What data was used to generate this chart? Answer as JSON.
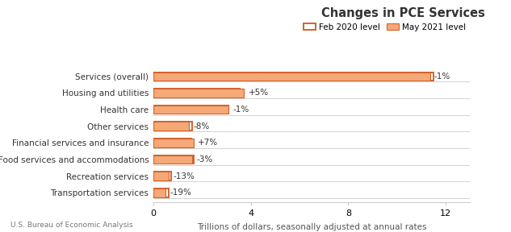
{
  "title": "Changes in PCE Services",
  "legend_labels": [
    "Feb 2020 level",
    "May 2021 level"
  ],
  "xlabel": "Trillions of dollars, seasonally adjusted at annual rates",
  "footnote": "U.S. Bureau of Economic Analysis",
  "categories": [
    "Services (overall)",
    "Housing and utilities",
    "Health care",
    "Other services",
    "Financial services and insurance",
    "Food services and accommodations",
    "Recreation services",
    "Transportation services"
  ],
  "feb2020_values": [
    11.5,
    3.55,
    3.1,
    1.6,
    1.55,
    1.65,
    0.72,
    0.62
  ],
  "may2021_values": [
    11.35,
    3.72,
    3.07,
    1.47,
    1.66,
    1.6,
    0.63,
    0.5
  ],
  "pct_labels": [
    "-1%",
    "+5%",
    "-1%",
    "-8%",
    "+7%",
    "-3%",
    "-13%",
    "-19%"
  ],
  "bar_color_filled": "#F5A878",
  "bar_color_outline": "#D4622A",
  "xlim": [
    0,
    13
  ],
  "xticks": [
    0,
    4,
    8,
    12
  ],
  "background_color": "#FFFFFF",
  "grid_color": "#CCCCCC",
  "title_fontsize": 10.5,
  "label_fontsize": 7.5,
  "tick_fontsize": 8,
  "footnote_fontsize": 6.5
}
